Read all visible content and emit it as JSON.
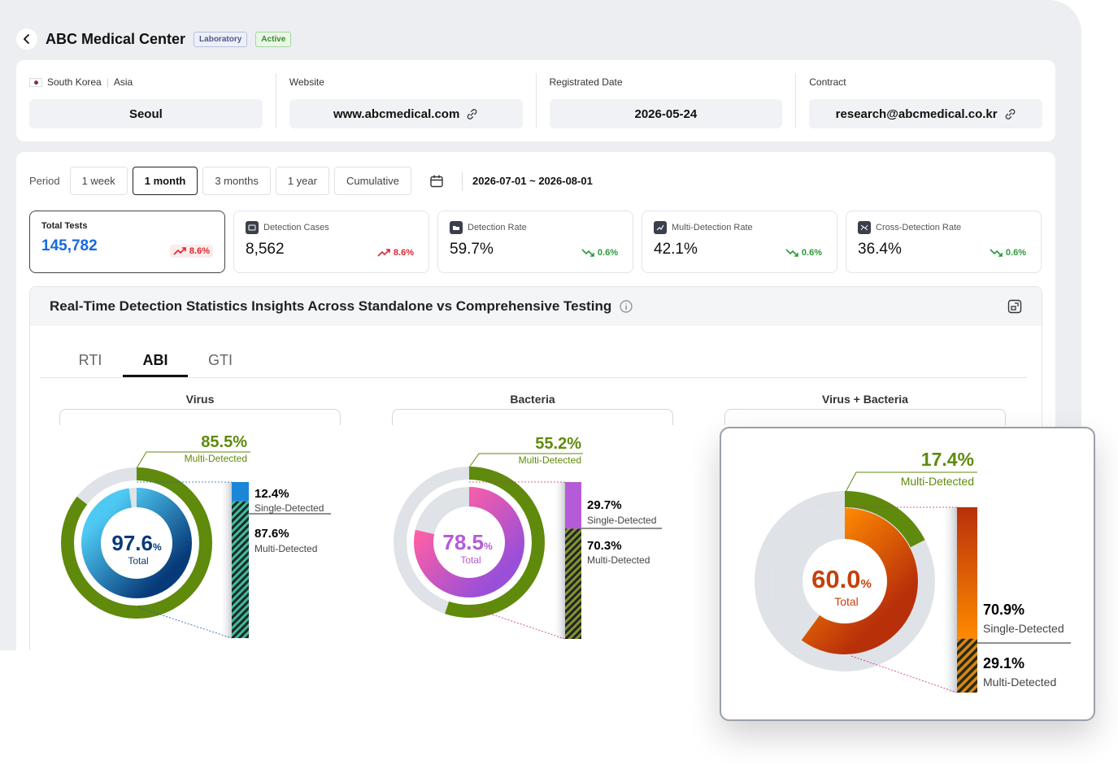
{
  "header": {
    "title": "ABC Medical Center",
    "badge_type": "Laboratory",
    "badge_status": "Active"
  },
  "info": {
    "location": {
      "country": "South Korea",
      "region": "Asia",
      "value": "Seoul"
    },
    "website": {
      "label": "Website",
      "value": "www.abcmedical.com"
    },
    "registered": {
      "label": "Registrated Date",
      "value": "2026-05-24"
    },
    "contract": {
      "label": "Contract",
      "value": "research@abcmedical.co.kr"
    }
  },
  "period": {
    "label": "Period",
    "options": [
      "1 week",
      "1 month",
      "3 months",
      "1 year",
      "Cumulative"
    ],
    "selected": "1 month",
    "range": "2026-07-01  ~  2026-08-01"
  },
  "stats": [
    {
      "title": "Total Tests",
      "value": "145,782",
      "delta": "8.6%",
      "trend": "up"
    },
    {
      "title": "Detection Cases",
      "value": "8,562",
      "delta": "8.6%",
      "trend": "up"
    },
    {
      "title": "Detection Rate",
      "value": "59.7%",
      "delta": "0.6%",
      "trend": "down"
    },
    {
      "title": "Multi-Detection Rate",
      "value": "42.1%",
      "delta": "0.6%",
      "trend": "down"
    },
    {
      "title": "Cross-Detection Rate",
      "value": "36.4%",
      "delta": "0.6%",
      "trend": "down"
    }
  ],
  "insight": {
    "title": "Real-Time Detection Statistics Insights Across Standalone vs Comprehensive Testing",
    "tabs": [
      "RTI",
      "ABI",
      "GTI"
    ],
    "active_tab": "ABI"
  },
  "charts": [
    {
      "title": "Virus",
      "total": "97.6",
      "total_label": "Total",
      "multi_outer": "85.5%",
      "multi_outer_label": "Multi-Detected",
      "single": "12.4%",
      "single_label": "Single-Detected",
      "multi": "87.6%",
      "multi_label": "Multi-Detected",
      "outer_fraction": 0.855,
      "single_fraction": 0.124
    },
    {
      "title": "Bacteria",
      "total": "78.5",
      "total_label": "Total",
      "multi_outer": "55.2%",
      "multi_outer_label": "Multi-Detected",
      "single": "29.7%",
      "single_label": "Single-Detected",
      "multi": "70.3%",
      "multi_label": "Multi-Detected",
      "outer_fraction": 0.552,
      "single_fraction": 0.297
    },
    {
      "title": "Virus + Bacteria",
      "total": "60.0",
      "total_label": "Total",
      "multi_outer": "17.4%",
      "multi_outer_label": "Multi-Detected",
      "single": "70.9%",
      "single_label": "Single-Detected",
      "multi": "29.1%",
      "multi_label": "Multi-Detected",
      "outer_fraction": 0.174,
      "single_fraction": 0.709
    }
  ],
  "colors": {
    "accent_blue": "#1769e0",
    "green": "#5f8a0c",
    "virus": "#1c7fd0",
    "bacteria": "#b45bd8",
    "combo": "#e86a0a"
  }
}
